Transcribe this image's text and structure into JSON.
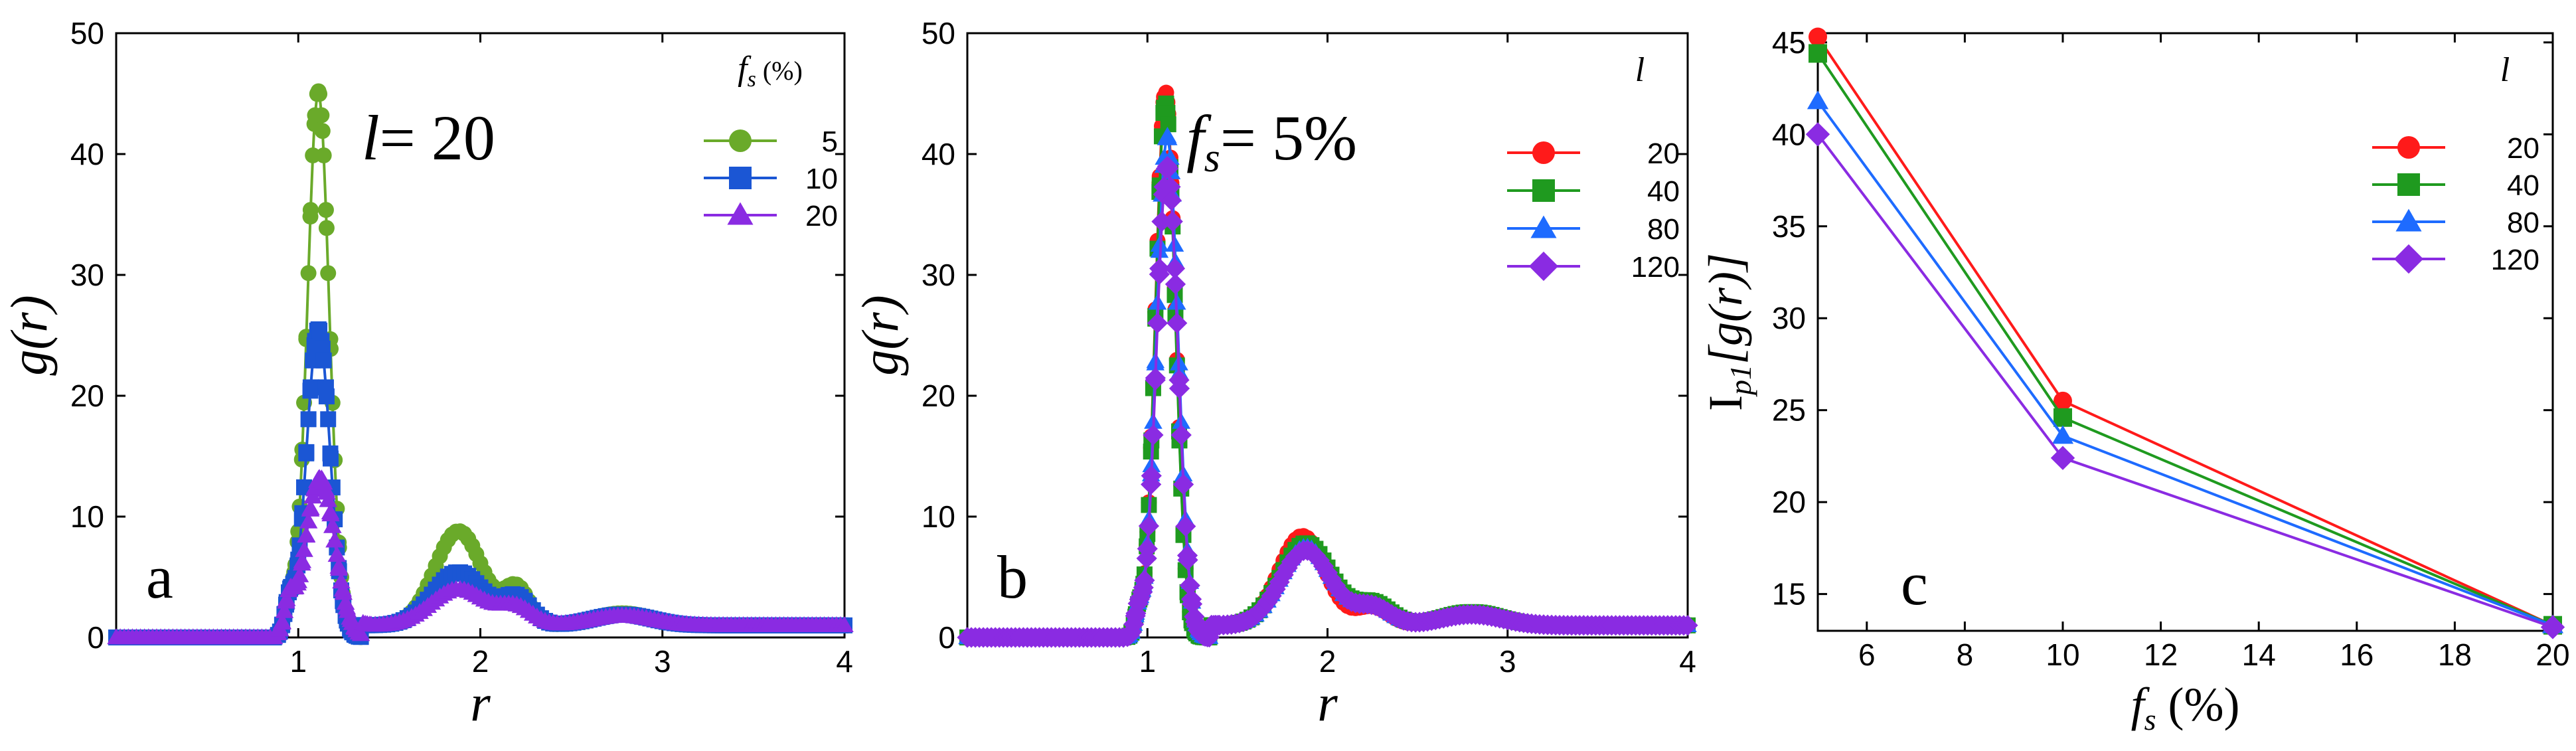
{
  "figure": {
    "panels": [
      "a",
      "b",
      "c"
    ]
  },
  "chart_data": [
    {
      "type": "line",
      "panel_label": "a",
      "annotation": {
        "symbol": "l",
        "text": "= 20"
      },
      "xlabel": "r",
      "ylabel": "g(r)",
      "xlim": [
        0,
        4
      ],
      "ylim": [
        0,
        50
      ],
      "xticks": [
        1,
        2,
        3,
        4
      ],
      "yticks": [
        0,
        10,
        20,
        30,
        40,
        50
      ],
      "legend": {
        "title_symbol": "f",
        "title_sub": "s",
        "title_rest": " (%)",
        "position": "top-right"
      },
      "series": [
        {
          "name": "5",
          "color": "#6aaa2a",
          "marker": "circle",
          "peaks": [
            [
              0.95,
              2.6,
              0.025
            ],
            [
              1.11,
              45.2,
              0.06
            ],
            [
              1.88,
              7.8,
              0.13
            ],
            [
              2.2,
              3.0,
              0.07
            ],
            [
              2.78,
              1.0,
              0.16
            ]
          ]
        },
        {
          "name": "10",
          "color": "#1b56d4",
          "marker": "square",
          "peaks": [
            [
              0.95,
              2.6,
              0.025
            ],
            [
              1.11,
              25.5,
              0.065
            ],
            [
              1.88,
              4.4,
              0.14
            ],
            [
              2.2,
              2.2,
              0.08
            ],
            [
              2.78,
              0.9,
              0.16
            ]
          ]
        },
        {
          "name": "20",
          "color": "#8a2be2",
          "marker": "triangle",
          "peaks": [
            [
              0.95,
              2.6,
              0.025
            ],
            [
              1.12,
              13.2,
              0.08
            ],
            [
              1.88,
              3.0,
              0.15
            ],
            [
              2.2,
              1.4,
              0.09
            ],
            [
              2.78,
              0.8,
              0.17
            ]
          ]
        }
      ]
    },
    {
      "type": "line",
      "panel_label": "b",
      "annotation": {
        "symbol": "f",
        "sub": "s",
        "text": "= 5%"
      },
      "xlabel": "r",
      "ylabel": "g(r)",
      "xlim": [
        0,
        4
      ],
      "ylim": [
        0,
        50
      ],
      "xticks": [
        1,
        2,
        3,
        4
      ],
      "yticks": [
        0,
        10,
        20,
        30,
        40,
        50
      ],
      "legend": {
        "title_symbol": "l",
        "position": "top-right"
      },
      "series": [
        {
          "name": "20",
          "color": "#ff1a1a",
          "marker": "circle",
          "peaks": [
            [
              0.95,
              1.8,
              0.02
            ],
            [
              1.1,
              45.2,
              0.055
            ],
            [
              1.86,
              7.4,
              0.13
            ],
            [
              2.25,
              1.5,
              0.09
            ],
            [
              2.8,
              1.0,
              0.16
            ]
          ]
        },
        {
          "name": "40",
          "color": "#1f9a1f",
          "marker": "square",
          "peaks": [
            [
              0.95,
              1.8,
              0.02
            ],
            [
              1.1,
              44.3,
              0.055
            ],
            [
              1.88,
              6.8,
              0.14
            ],
            [
              2.25,
              1.8,
              0.1
            ],
            [
              2.8,
              1.1,
              0.16
            ]
          ]
        },
        {
          "name": "80",
          "color": "#1e6bff",
          "marker": "triangle",
          "peaks": [
            [
              0.95,
              1.8,
              0.02
            ],
            [
              1.11,
              41.5,
              0.06
            ],
            [
              1.88,
              6.5,
              0.14
            ],
            [
              2.25,
              1.6,
              0.1
            ],
            [
              2.8,
              1.0,
              0.16
            ]
          ]
        },
        {
          "name": "120",
          "color": "#8a2be2",
          "marker": "diamond",
          "peaks": [
            [
              0.95,
              1.8,
              0.02
            ],
            [
              1.11,
              39.0,
              0.06
            ],
            [
              1.88,
              6.2,
              0.14
            ],
            [
              2.25,
              1.5,
              0.1
            ],
            [
              2.8,
              0.9,
              0.17
            ]
          ]
        }
      ]
    },
    {
      "type": "line",
      "panel_label": "c",
      "xlabel_symbol": "f",
      "xlabel_sub": "s",
      "xlabel_rest": " (%)",
      "ylabel_main": "I",
      "ylabel_sub": "p1",
      "ylabel_rest": "[g(r)]",
      "xlim": [
        5,
        20
      ],
      "ylim": [
        13,
        45.5
      ],
      "xticks": [
        6,
        8,
        10,
        12,
        14,
        16,
        18,
        20
      ],
      "yticks": [
        15,
        20,
        25,
        30,
        35,
        40,
        45
      ],
      "legend": {
        "title_symbol": "l",
        "position": "top-right"
      },
      "x": [
        5,
        10,
        20
      ],
      "series": [
        {
          "name": "20",
          "color": "#ff1a1a",
          "marker": "circle",
          "values": [
            45.3,
            25.5,
            13.3
          ]
        },
        {
          "name": "40",
          "color": "#1f9a1f",
          "marker": "square",
          "values": [
            44.4,
            24.6,
            13.3
          ]
        },
        {
          "name": "80",
          "color": "#1e6bff",
          "marker": "triangle",
          "values": [
            41.8,
            23.6,
            13.3
          ]
        },
        {
          "name": "120",
          "color": "#8a2be2",
          "marker": "diamond",
          "values": [
            40.0,
            22.4,
            13.2
          ]
        }
      ]
    }
  ]
}
